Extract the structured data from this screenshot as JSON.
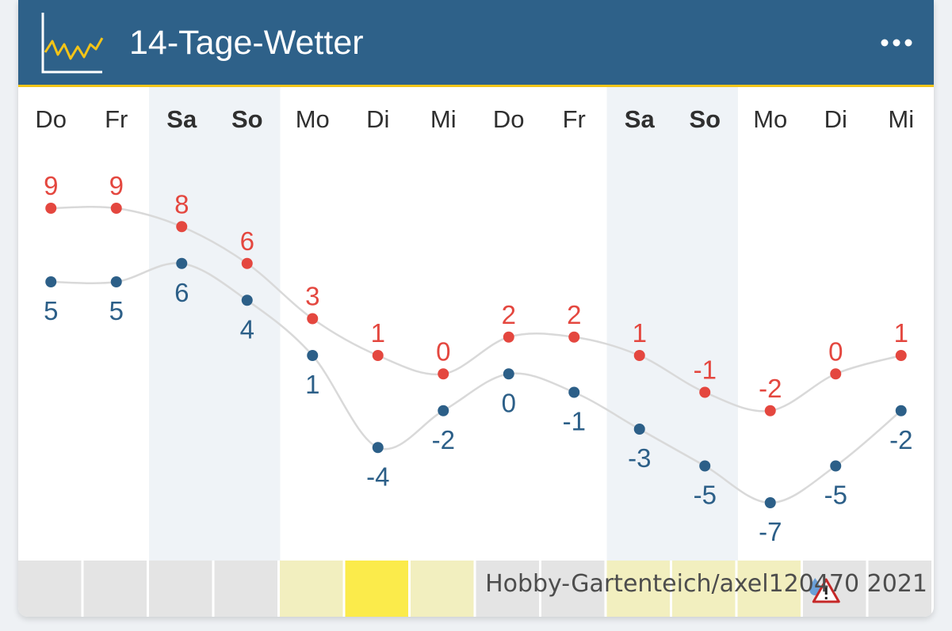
{
  "header": {
    "title": "14-Tage-Wetter",
    "menu_icon": "more-horizontal-icon",
    "logo_icon": "line-chart-icon"
  },
  "colors": {
    "header_bg": "#2e6189",
    "header_accent": "#f3c418",
    "max_series": "#e4473f",
    "min_series": "#2c5f88",
    "weekend_bg": "#eff3f7",
    "footer_grey": "#e4e4e4",
    "footer_pale_yellow": "#f2efbf",
    "footer_yellow": "#fbeb4b"
  },
  "chart_data": {
    "type": "line",
    "categories": [
      "Do",
      "Fr",
      "Sa",
      "So",
      "Mo",
      "Di",
      "Mi",
      "Do",
      "Fr",
      "Sa",
      "So",
      "Mo",
      "Di",
      "Mi"
    ],
    "weekend": [
      false,
      false,
      true,
      true,
      false,
      false,
      false,
      false,
      false,
      true,
      true,
      false,
      false,
      false
    ],
    "series": [
      {
        "values": [
          9,
          9,
          8,
          6,
          3,
          1,
          0,
          2,
          2,
          1,
          -1,
          -2,
          0,
          1
        ],
        "color": "#e4473f"
      },
      {
        "values": [
          5,
          5,
          6,
          4,
          1,
          -4,
          -2,
          0,
          -1,
          -3,
          -5,
          -7,
          -5,
          -2
        ],
        "color": "#2c5f88"
      }
    ],
    "ylim": [
      -7,
      9
    ],
    "grid": false,
    "legend": "none"
  },
  "footer": {
    "strip": [
      "grey",
      "grey",
      "grey",
      "grey",
      "pale-yellow",
      "yellow",
      "pale-yellow",
      "grey",
      "grey",
      "pale-yellow",
      "pale-yellow",
      "pale-yellow",
      "grey-warning",
      "grey"
    ],
    "warning_icon": "warning-triangle-icon",
    "credit": "Hobby-Gartenteich/axel120470 2021"
  }
}
